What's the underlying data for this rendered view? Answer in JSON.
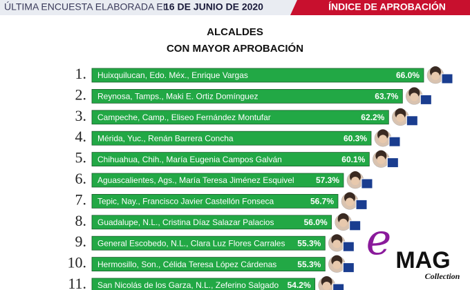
{
  "header": {
    "left": "ÚLTIMA ENCUESTA ELABORADA EL",
    "date": "16 DE JUNIO DE 2020",
    "right": "ÍNDICE DE APROBACIÓN"
  },
  "chart_data": {
    "type": "bar",
    "orientation": "horizontal",
    "title": "ALCALDES",
    "subtitle": "CON MAYOR APROBACIÓN",
    "ranks": [
      "1.",
      "2.",
      "3.",
      "4.",
      "5.",
      "6.",
      "7.",
      "8.",
      "9.",
      "10.",
      "11."
    ],
    "categories": [
      "Huixquilucan, Edo. Méx., Enrique Vargas",
      "Reynosa, Tamps., Maki E. Ortiz Domínguez",
      "Campeche, Camp., Eliseo Fernández Montufar",
      "Mérida, Yuc., Renán Barrera Concha",
      "Chihuahua, Chih., María Eugenia Campos Galván",
      "Aguascalientes, Ags., María Teresa Jiménez Esquivel",
      "Tepic, Nay., Francisco Javier Castellón Fonseca",
      "Guadalupe, N.L., Cristina Díaz Salazar Palacios",
      "General Escobedo, N.L., Clara Luz Flores Carrales",
      "Hermosillo, Son., Célida Teresa López Cárdenas",
      "San Nicolás de los Garza, N.L., Zeferino Salgado"
    ],
    "values": [
      66.0,
      63.7,
      62.2,
      60.3,
      60.1,
      57.3,
      56.7,
      56.0,
      55.3,
      55.3,
      54.2
    ],
    "value_labels": [
      "66.0%",
      "63.7%",
      "62.2%",
      "60.3%",
      "60.1%",
      "57.3%",
      "56.7%",
      "56.0%",
      "55.3%",
      "55.3%",
      "54.2%"
    ],
    "xlim": [
      30,
      66
    ],
    "color": "#22a845"
  },
  "watermark": {
    "letter": "e",
    "brand": "MAG",
    "sub": "Collection"
  }
}
